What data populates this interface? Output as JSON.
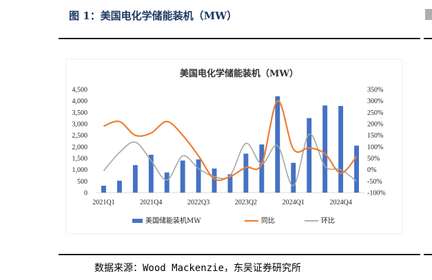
{
  "figure": {
    "label": "图 1：美国电化学储能装机（MW）",
    "source": "数据来源：Wood Mackenzie，东吴证券研究所"
  },
  "chart_data": {
    "type": "bar+line",
    "title": "美国电化学储能装机（MW）",
    "categories": [
      "2021Q1",
      "2021Q2",
      "2021Q3",
      "2021Q4",
      "2022Q1",
      "2022Q2",
      "2022Q3",
      "2022Q4",
      "2023Q1",
      "2023Q2",
      "2023Q3",
      "2023Q4",
      "2024Q1",
      "2024Q2",
      "2024Q3",
      "2024Q4",
      "2025Q1"
    ],
    "x_tick_labels": [
      "2021Q1",
      "2021Q4",
      "2022Q3",
      "2023Q2",
      "2024Q1",
      "2024Q4"
    ],
    "y_left": {
      "ylim": [
        0,
        4500
      ],
      "ticks": [
        "0",
        "500",
        "1,000",
        "1,500",
        "2,000",
        "2,500",
        "3,000",
        "3,500",
        "4,000",
        "4,500"
      ]
    },
    "y_right": {
      "ylim": [
        -100,
        350
      ],
      "ticks": [
        "-100%",
        "-50%",
        "0%",
        "50%",
        "100%",
        "150%",
        "200%",
        "250%",
        "300%",
        "350%"
      ]
    },
    "series": [
      {
        "name": "美国储能装机MW",
        "type": "bar",
        "axis": "left",
        "color": "#4472c4",
        "values": [
          300,
          520,
          1200,
          1650,
          880,
          1400,
          1450,
          1050,
          800,
          1700,
          2100,
          4200,
          1300,
          3250,
          3800,
          3780,
          2050
        ]
      },
      {
        "name": "同比",
        "type": "line",
        "axis": "right",
        "color": "#ed7d31",
        "values": [
          190,
          210,
          150,
          160,
          210,
          150,
          60,
          -40,
          -30,
          10,
          25,
          300,
          90,
          95,
          70,
          -15,
          58
        ]
      },
      {
        "name": "环比",
        "type": "line",
        "axis": "right",
        "color": "#a5a5a5",
        "values": [
          -5,
          75,
          120,
          40,
          -45,
          60,
          5,
          -30,
          -25,
          115,
          25,
          105,
          -70,
          155,
          15,
          0,
          -50
        ]
      }
    ],
    "legend": [
      "美国储能装机MW",
      "同比",
      "环比"
    ],
    "legend_position": "bottom"
  }
}
